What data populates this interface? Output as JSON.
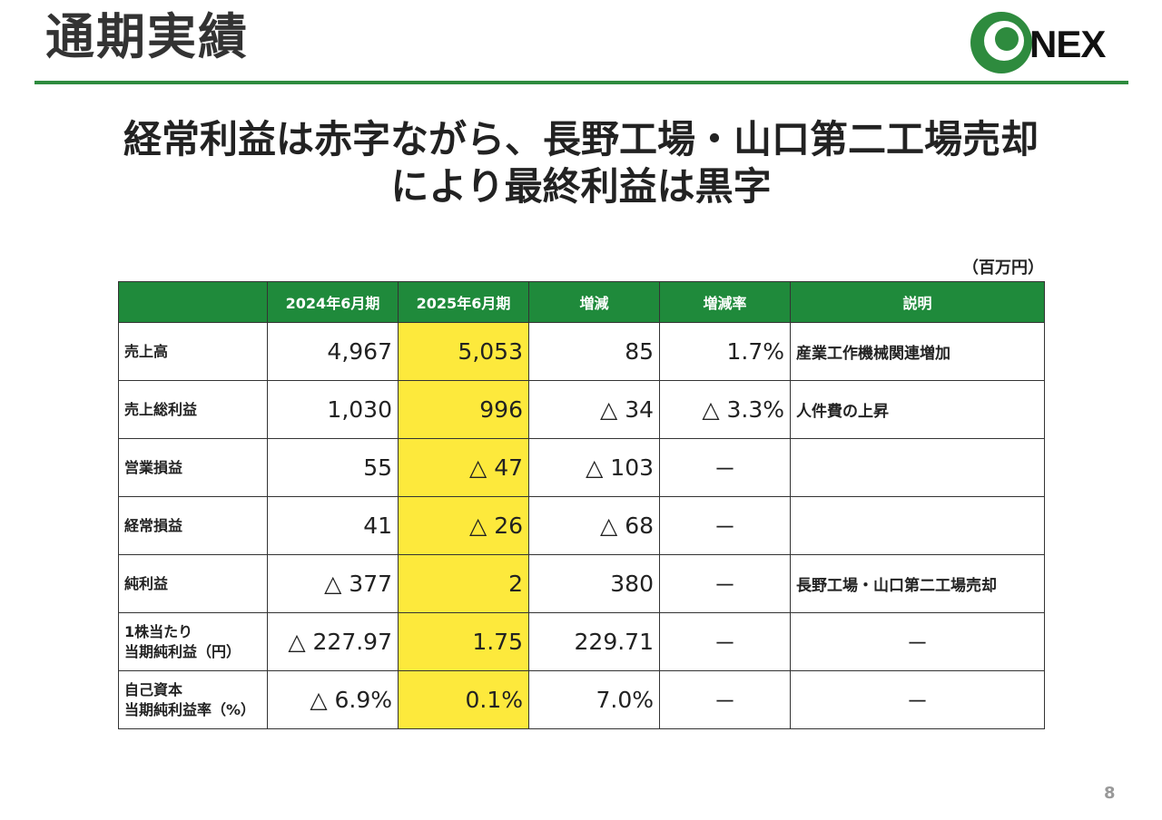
{
  "slide": {
    "title": "通期実績",
    "headline_line1": "経常利益は赤字ながら、長野工場・山口第二工場売却",
    "headline_line2": "により最終利益は黒字",
    "unit": "（百万円）",
    "page_number": "8"
  },
  "logo": {
    "text": "NEX",
    "brand_color": "#2e8b3e"
  },
  "colors": {
    "header_green": "#1f8a3b",
    "highlight_yellow": "#fde93c",
    "rule_green": "#2e8b3e"
  },
  "table": {
    "headers": [
      "",
      "2024年6月期",
      "2025年6月期",
      "増減",
      "増減率",
      "説明"
    ],
    "rows": [
      {
        "label": "売上高",
        "fy2024": "4,967",
        "fy2025": "5,053",
        "change": "85",
        "rate": "1.7%",
        "note": "産業工作機械関連増加"
      },
      {
        "label": "売上総利益",
        "fy2024": "1,030",
        "fy2025": "996",
        "change": "△ 34",
        "rate": "△ 3.3%",
        "note": "人件費の上昇"
      },
      {
        "label": "営業損益",
        "fy2024": "55",
        "fy2025": "△ 47",
        "change": "△ 103",
        "rate": "－",
        "note": ""
      },
      {
        "label": "経常損益",
        "fy2024": "41",
        "fy2025": "△ 26",
        "change": "△ 68",
        "rate": "－",
        "note": ""
      },
      {
        "label": "純利益",
        "fy2024": "△ 377",
        "fy2025": "2",
        "change": "380",
        "rate": "－",
        "note": "長野工場・山口第二工場売却"
      },
      {
        "label_line1": "1株当たり",
        "label_line2": "当期純利益（円）",
        "fy2024": "△ 227.97",
        "fy2025": "1.75",
        "change": "229.71",
        "rate": "－",
        "note": "－"
      },
      {
        "label_line1": "自己資本",
        "label_line2": "当期純利益率（%）",
        "fy2024": "△ 6.9%",
        "fy2025": "0.1%",
        "change": "7.0%",
        "rate": "－",
        "note": "－"
      }
    ]
  }
}
